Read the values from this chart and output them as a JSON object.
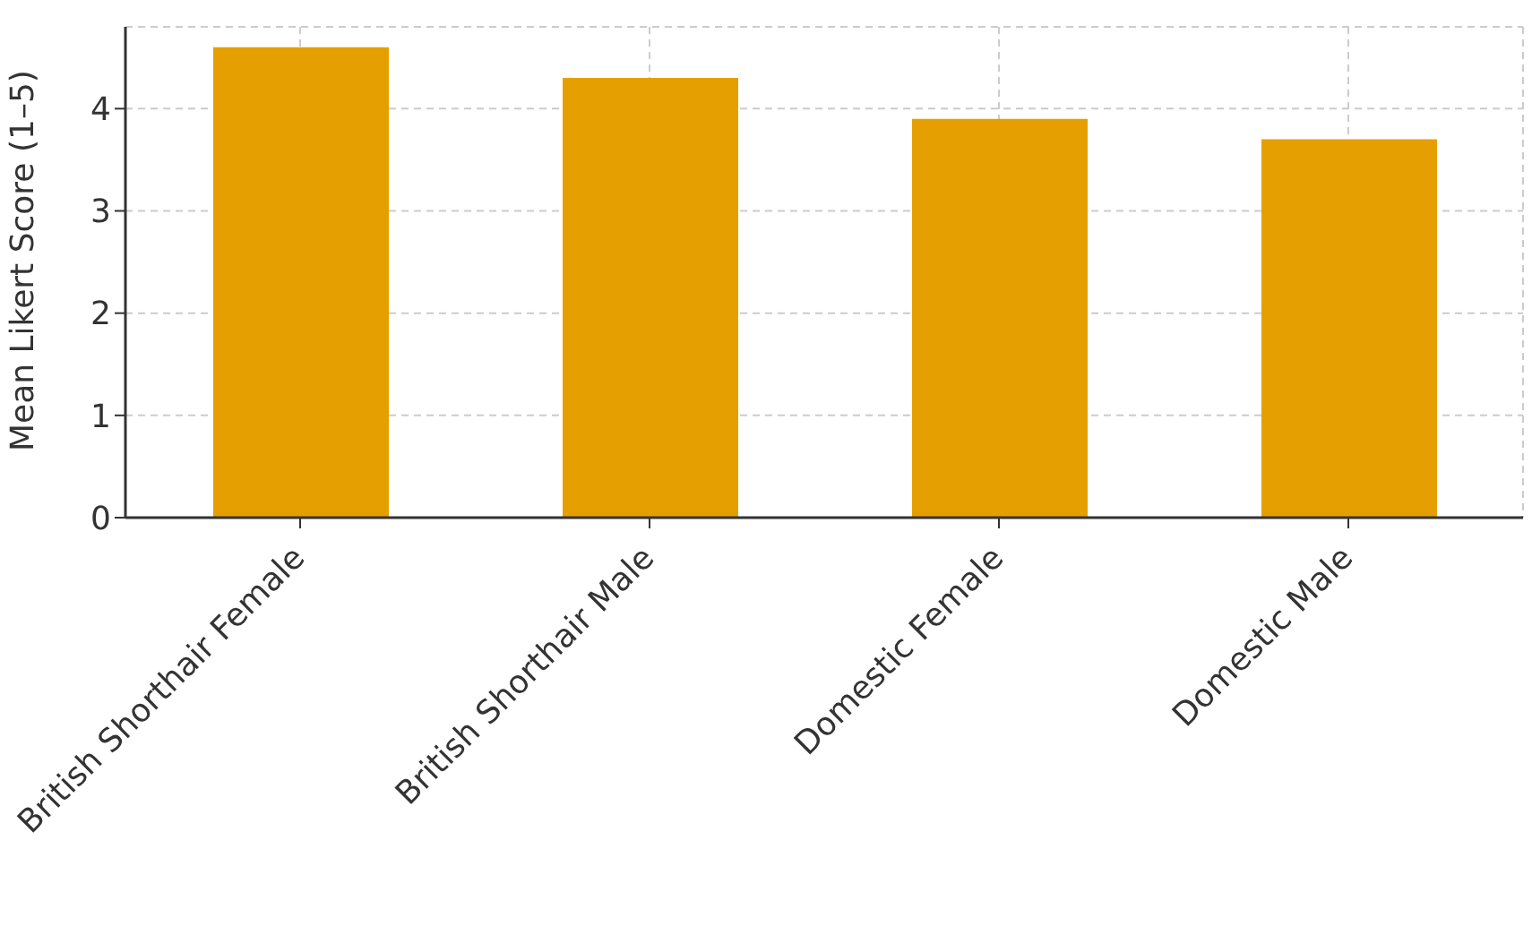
{
  "chart_data": {
    "type": "bar",
    "ylabel": "Mean Likert Score (1–5)",
    "categories": [
      "British Shorthair Female",
      "British Shorthair Male",
      "Domestic Female",
      "Domestic Male"
    ],
    "values": [
      4.6,
      4.3,
      3.9,
      3.7
    ],
    "color": "#e69f00",
    "ylim": [
      0,
      4.8
    ],
    "yticks": [
      0,
      1,
      2,
      3,
      4
    ],
    "grid": true
  }
}
